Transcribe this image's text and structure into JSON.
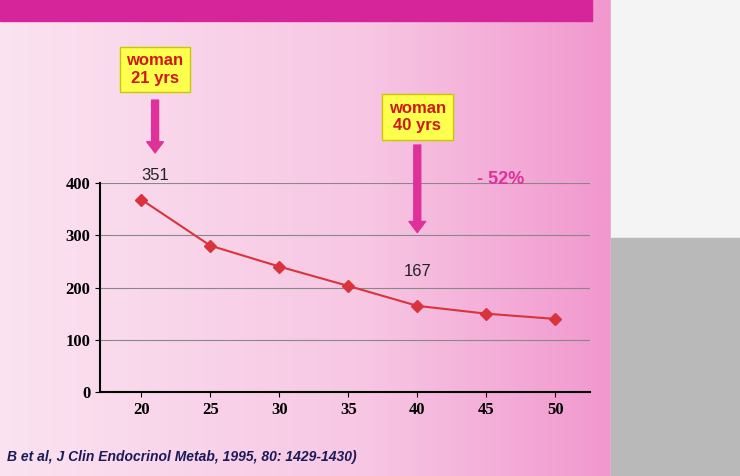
{
  "chart_data": {
    "type": "line",
    "x": [
      20,
      25,
      30,
      35,
      40,
      45,
      50
    ],
    "values": [
      368,
      280,
      240,
      203,
      165,
      150,
      140
    ],
    "color": "#d9343c",
    "marker": "diamond",
    "line_style": "solid",
    "xlim": [
      17,
      52.5
    ],
    "xticks": [
      20,
      25,
      30,
      35,
      40,
      45,
      50
    ],
    "ylim": [
      0,
      400
    ],
    "yticks": [
      0,
      100,
      200,
      300,
      400
    ],
    "grid": true,
    "annotations": [
      {
        "label": "woman\n21 yrs",
        "x": 21,
        "value": 351
      },
      {
        "label": "woman\n40 yrs",
        "x": 40,
        "value": 167,
        "change": "- 52%"
      }
    ],
    "source": "B et al, J Clin Endocrinol Metab, 1995, 80: 1429-1430)"
  }
}
